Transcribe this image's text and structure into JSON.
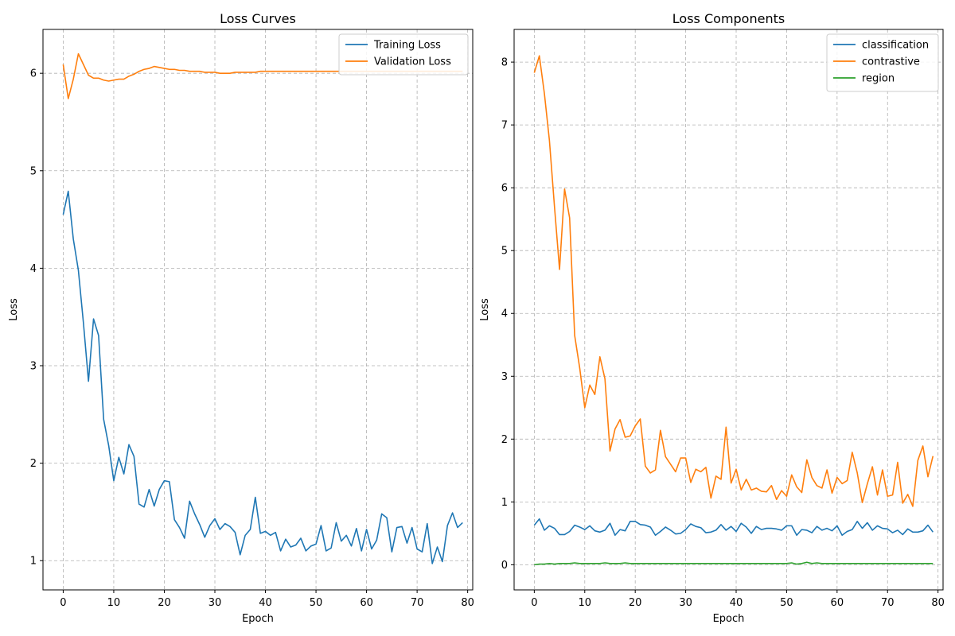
{
  "chart_data": [
    {
      "type": "line",
      "title": "Loss Curves",
      "xlabel": "Epoch",
      "ylabel": "Loss",
      "xlim": [
        -4,
        81
      ],
      "ylim": [
        0.7,
        6.45
      ],
      "xticks": [
        0,
        10,
        20,
        30,
        40,
        50,
        60,
        70,
        80
      ],
      "yticks": [
        1,
        2,
        3,
        4,
        5,
        6
      ],
      "grid": true,
      "legend_position": "top-right",
      "series": [
        {
          "name": "Training Loss",
          "color": "#1f77b4",
          "values": [
            4.55,
            4.79,
            4.3,
            3.98,
            3.44,
            2.84,
            3.48,
            3.31,
            2.45,
            2.18,
            1.82,
            2.06,
            1.89,
            2.19,
            2.07,
            1.58,
            1.55,
            1.73,
            1.56,
            1.73,
            1.82,
            1.81,
            1.42,
            1.34,
            1.23,
            1.61,
            1.48,
            1.37,
            1.24,
            1.36,
            1.43,
            1.32,
            1.38,
            1.35,
            1.29,
            1.06,
            1.26,
            1.32,
            1.65,
            1.28,
            1.3,
            1.26,
            1.29,
            1.1,
            1.22,
            1.14,
            1.16,
            1.23,
            1.1,
            1.15,
            1.17,
            1.36,
            1.1,
            1.13,
            1.39,
            1.2,
            1.26,
            1.15,
            1.33,
            1.1,
            1.32,
            1.12,
            1.21,
            1.48,
            1.44,
            1.09,
            1.34,
            1.35,
            1.18,
            1.34,
            1.12,
            1.09,
            1.38,
            0.97,
            1.14,
            0.99,
            1.36,
            1.49,
            1.34,
            1.39
          ]
        },
        {
          "name": "Validation Loss",
          "color": "#ff7f0e",
          "values": [
            6.09,
            5.74,
            5.94,
            6.2,
            6.09,
            5.98,
            5.95,
            5.95,
            5.93,
            5.92,
            5.93,
            5.94,
            5.94,
            5.97,
            5.99,
            6.02,
            6.04,
            6.05,
            6.07,
            6.06,
            6.05,
            6.04,
            6.04,
            6.03,
            6.03,
            6.02,
            6.02,
            6.02,
            6.01,
            6.01,
            6.01,
            6.0,
            6.0,
            6.0,
            6.01,
            6.01,
            6.01,
            6.01,
            6.01,
            6.02,
            6.02,
            6.02,
            6.02,
            6.02,
            6.02,
            6.02,
            6.02,
            6.02,
            6.02,
            6.02,
            6.02,
            6.02,
            6.02,
            6.02,
            6.02,
            6.02,
            6.02,
            6.02,
            6.02,
            6.02,
            6.02,
            6.02,
            6.02,
            6.02,
            6.02,
            6.02,
            6.02,
            6.02,
            6.02,
            6.02,
            6.02,
            6.02,
            6.02,
            6.02,
            6.02,
            6.02,
            6.02,
            6.02,
            6.02,
            6.02
          ]
        }
      ]
    },
    {
      "type": "line",
      "title": "Loss Components",
      "xlabel": "Epoch",
      "ylabel": "Loss",
      "xlim": [
        -4,
        81
      ],
      "ylim": [
        -0.4,
        8.52
      ],
      "xticks": [
        0,
        10,
        20,
        30,
        40,
        50,
        60,
        70,
        80
      ],
      "yticks": [
        0,
        1,
        2,
        3,
        4,
        5,
        6,
        7,
        8
      ],
      "grid": true,
      "legend_position": "top-right",
      "series": [
        {
          "name": "classification",
          "color": "#1f77b4",
          "values": [
            0.63,
            0.73,
            0.55,
            0.62,
            0.58,
            0.48,
            0.48,
            0.53,
            0.63,
            0.6,
            0.56,
            0.62,
            0.54,
            0.52,
            0.55,
            0.66,
            0.47,
            0.56,
            0.54,
            0.69,
            0.69,
            0.64,
            0.63,
            0.6,
            0.47,
            0.53,
            0.6,
            0.55,
            0.49,
            0.5,
            0.56,
            0.65,
            0.61,
            0.59,
            0.51,
            0.52,
            0.55,
            0.64,
            0.55,
            0.61,
            0.53,
            0.66,
            0.6,
            0.5,
            0.61,
            0.56,
            0.58,
            0.58,
            0.57,
            0.55,
            0.62,
            0.62,
            0.47,
            0.56,
            0.55,
            0.51,
            0.61,
            0.55,
            0.58,
            0.54,
            0.62,
            0.47,
            0.53,
            0.56,
            0.69,
            0.58,
            0.67,
            0.55,
            0.62,
            0.58,
            0.57,
            0.51,
            0.55,
            0.48,
            0.57,
            0.52,
            0.52,
            0.54,
            0.63,
            0.52
          ]
        },
        {
          "name": "contrastive",
          "color": "#ff7f0e",
          "values": [
            7.83,
            8.1,
            7.5,
            6.75,
            5.7,
            4.7,
            5.98,
            5.52,
            3.65,
            3.13,
            2.5,
            2.86,
            2.71,
            3.31,
            2.96,
            1.81,
            2.16,
            2.31,
            2.03,
            2.05,
            2.21,
            2.32,
            1.57,
            1.46,
            1.51,
            2.14,
            1.72,
            1.6,
            1.48,
            1.7,
            1.7,
            1.31,
            1.52,
            1.48,
            1.55,
            1.06,
            1.41,
            1.36,
            2.19,
            1.3,
            1.52,
            1.19,
            1.36,
            1.19,
            1.22,
            1.17,
            1.16,
            1.26,
            1.04,
            1.18,
            1.09,
            1.43,
            1.24,
            1.15,
            1.67,
            1.39,
            1.26,
            1.22,
            1.51,
            1.14,
            1.39,
            1.29,
            1.34,
            1.79,
            1.46,
            0.99,
            1.29,
            1.56,
            1.11,
            1.51,
            1.09,
            1.11,
            1.63,
            0.98,
            1.12,
            0.93,
            1.66,
            1.89,
            1.4,
            1.73
          ]
        },
        {
          "name": "region",
          "color": "#2ca02c",
          "values": [
            0.0,
            0.01,
            0.01,
            0.02,
            0.01,
            0.02,
            0.02,
            0.02,
            0.03,
            0.02,
            0.02,
            0.02,
            0.02,
            0.02,
            0.03,
            0.02,
            0.02,
            0.02,
            0.03,
            0.02,
            0.02,
            0.02,
            0.02,
            0.02,
            0.02,
            0.02,
            0.02,
            0.02,
            0.02,
            0.02,
            0.02,
            0.02,
            0.02,
            0.02,
            0.02,
            0.02,
            0.02,
            0.02,
            0.02,
            0.02,
            0.02,
            0.02,
            0.02,
            0.02,
            0.02,
            0.02,
            0.02,
            0.02,
            0.02,
            0.02,
            0.02,
            0.03,
            0.01,
            0.02,
            0.04,
            0.02,
            0.03,
            0.02,
            0.02,
            0.02,
            0.02,
            0.02,
            0.02,
            0.02,
            0.02,
            0.02,
            0.02,
            0.02,
            0.02,
            0.02,
            0.02,
            0.02,
            0.02,
            0.02,
            0.02,
            0.02,
            0.02,
            0.02,
            0.02,
            0.02
          ]
        }
      ]
    }
  ]
}
